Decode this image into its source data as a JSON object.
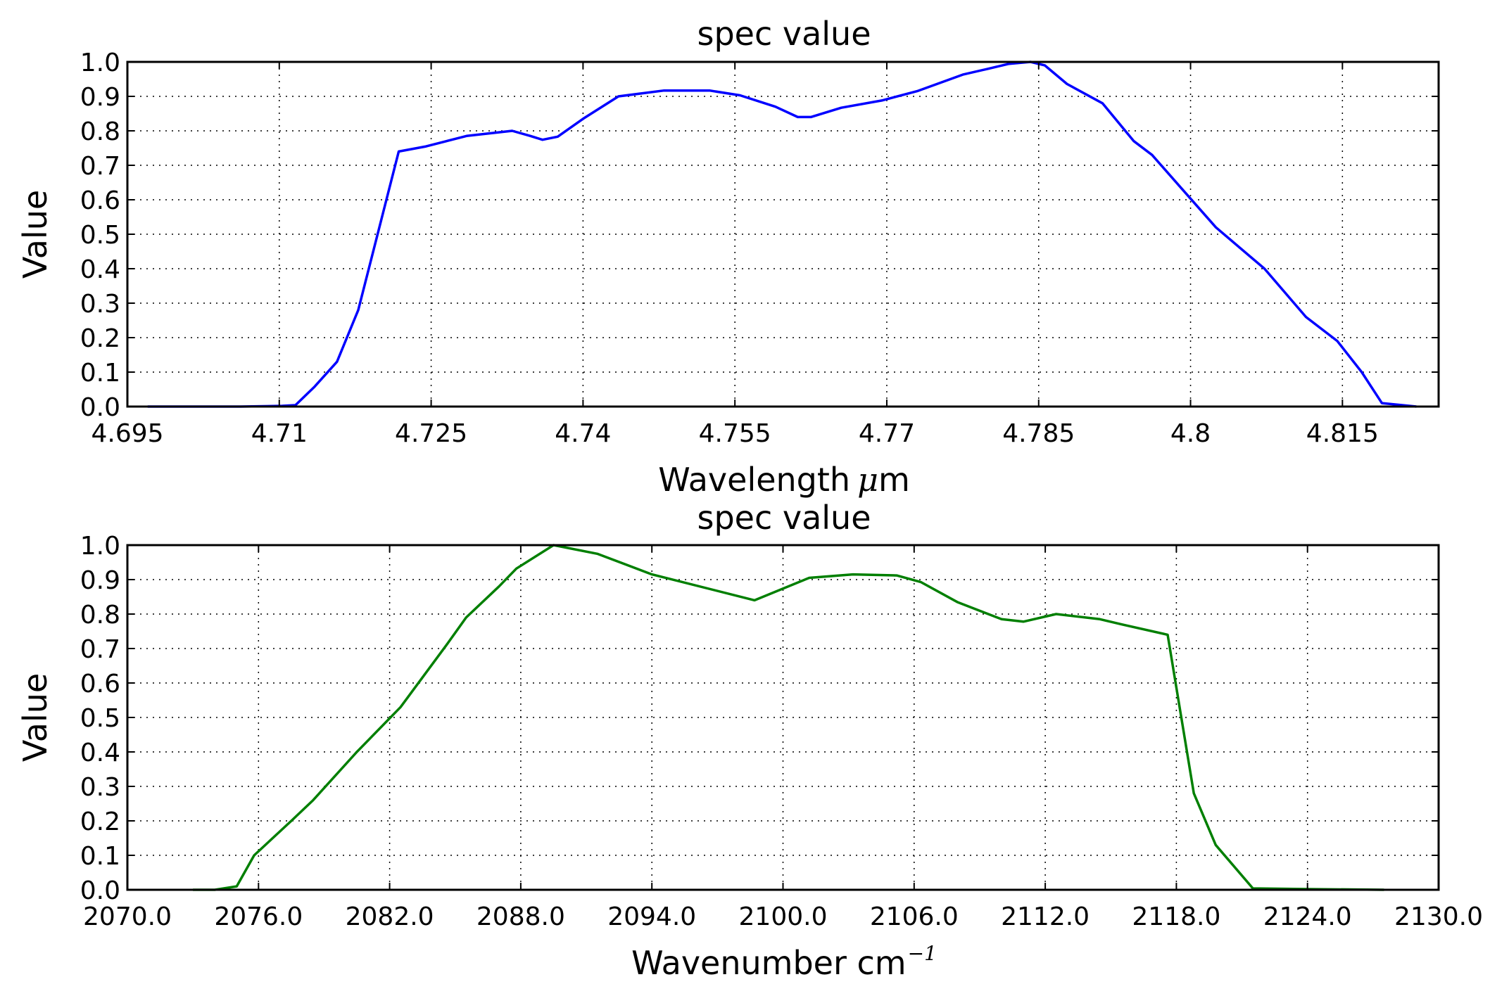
{
  "chart_data": [
    {
      "type": "line",
      "title": "spec value",
      "xlabel": "Wavelength",
      "xlabel_unit_math": "μ",
      "xlabel_unit_rest": "m",
      "ylabel": "Value",
      "xlim": [
        4.695,
        4.8245
      ],
      "ylim": [
        0.0,
        1.0
      ],
      "grid": true,
      "color": "#0000ff",
      "xticks": [
        "4.695",
        "4.71",
        "4.725",
        "4.74",
        "4.755",
        "4.77",
        "4.785",
        "4.8",
        "4.815"
      ],
      "xtick_values": [
        4.695,
        4.71,
        4.725,
        4.74,
        4.755,
        4.77,
        4.785,
        4.8,
        4.815
      ],
      "yticks": [
        "0.0",
        "0.1",
        "0.2",
        "0.3",
        "0.4",
        "0.5",
        "0.6",
        "0.7",
        "0.8",
        "0.9",
        "1.0"
      ],
      "series": [
        {
          "x": [
            4.697,
            4.7012,
            4.7062,
            4.7103,
            4.7116,
            4.7135,
            4.7157,
            4.7178,
            4.7218,
            4.7245,
            4.7265,
            4.7285,
            4.733,
            4.7348,
            4.736,
            4.7375,
            4.74,
            4.7435,
            4.748,
            4.7525,
            4.7555,
            4.759,
            4.7612,
            4.7625,
            4.7655,
            4.7695,
            4.773,
            4.7775,
            4.78,
            4.782,
            4.7842,
            4.7856,
            4.7878,
            4.7913,
            4.7944,
            4.7962,
            4.7992,
            4.8025,
            4.8073,
            4.8114,
            4.8145,
            4.8169,
            4.8189,
            4.8223
          ],
          "y": [
            0.0,
            0.0,
            0.0,
            0.002,
            0.004,
            0.058,
            0.13,
            0.28,
            0.74,
            0.755,
            0.77,
            0.785,
            0.8,
            0.785,
            0.774,
            0.783,
            0.835,
            0.9,
            0.917,
            0.917,
            0.903,
            0.87,
            0.84,
            0.84,
            0.867,
            0.888,
            0.915,
            0.963,
            0.98,
            0.994,
            1.0,
            0.99,
            0.936,
            0.88,
            0.77,
            0.73,
            0.63,
            0.52,
            0.4,
            0.26,
            0.19,
            0.1,
            0.01,
            0.0
          ]
        }
      ]
    },
    {
      "type": "line",
      "title": "spec value",
      "xlabel": "Wavenumber cm",
      "xlabel_sup": "−1",
      "ylabel": "Value",
      "xlim": [
        2070.0,
        2130.0
      ],
      "ylim": [
        0.0,
        1.0
      ],
      "grid": true,
      "color": "#007f00",
      "xticks": [
        "2070.0",
        "2076.0",
        "2082.0",
        "2088.0",
        "2094.0",
        "2100.0",
        "2106.0",
        "2112.0",
        "2118.0",
        "2124.0",
        "2130.0"
      ],
      "xtick_values": [
        2070,
        2076,
        2082,
        2088,
        2094,
        2100,
        2106,
        2112,
        2118,
        2124,
        2130
      ],
      "yticks": [
        "0.0",
        "0.1",
        "0.2",
        "0.3",
        "0.4",
        "0.5",
        "0.6",
        "0.7",
        "0.8",
        "0.9",
        "1.0"
      ],
      "series": [
        {
          "x": [
            2073.0,
            2074.0,
            2075.0,
            2075.8,
            2077.5,
            2078.5,
            2080.5,
            2082.5,
            2084.6,
            2085.5,
            2087.0,
            2087.8,
            2089.5,
            2091.5,
            2094.0,
            2098.7,
            2101.2,
            2103.2,
            2105.2,
            2106.3,
            2108.0,
            2110.0,
            2111.0,
            2112.5,
            2114.5,
            2115.5,
            2117.6,
            2118.8,
            2119.8,
            2121.5,
            2124.0,
            2127.5
          ],
          "y": [
            0.0,
            0.0,
            0.01,
            0.1,
            0.2,
            0.26,
            0.4,
            0.53,
            0.71,
            0.79,
            0.88,
            0.932,
            1.0,
            0.975,
            0.915,
            0.84,
            0.905,
            0.915,
            0.912,
            0.893,
            0.834,
            0.785,
            0.778,
            0.8,
            0.785,
            0.77,
            0.74,
            0.28,
            0.13,
            0.004,
            0.002,
            0.0
          ]
        }
      ]
    }
  ]
}
